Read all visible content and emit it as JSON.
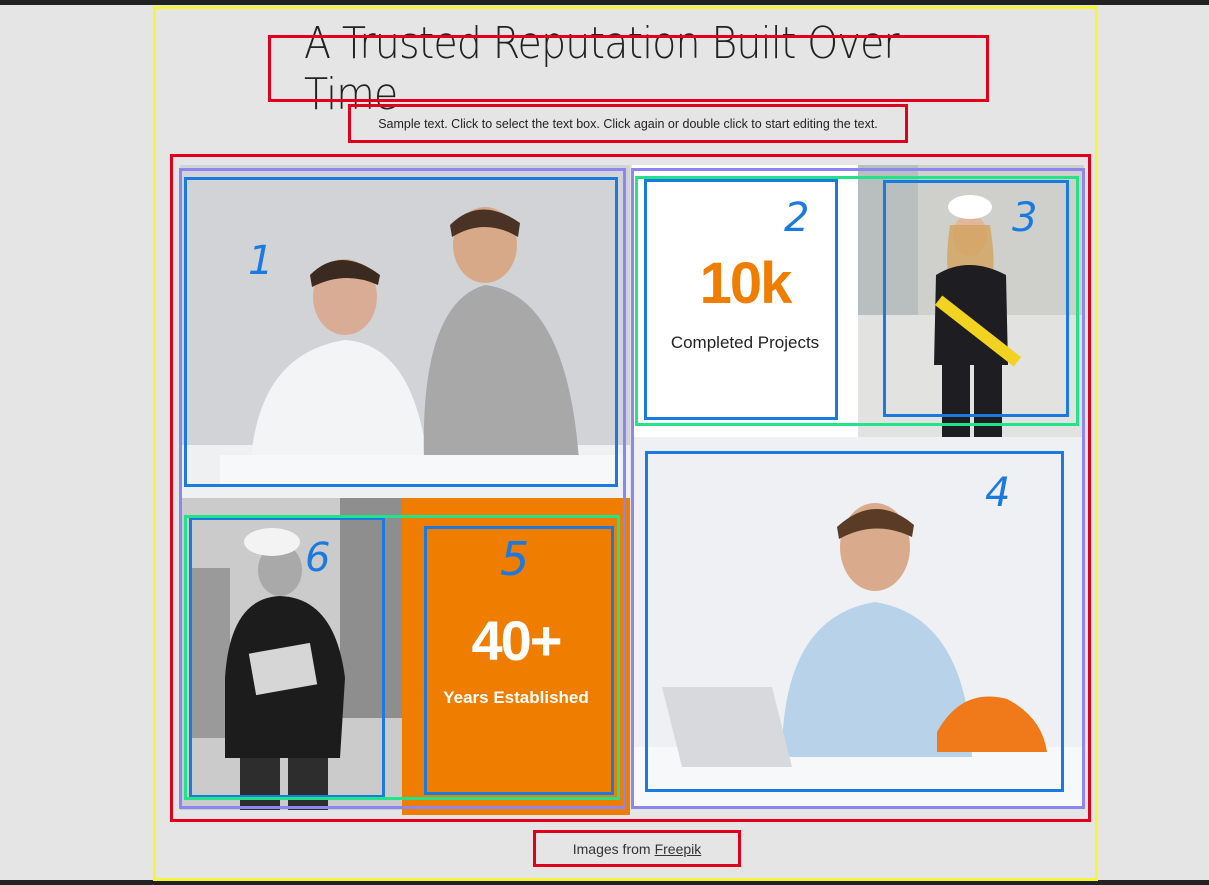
{
  "header": {
    "title": "A Trusted Reputation Built Over Time",
    "subtitle": "Sample text. Click to select the text box. Click again or double click to start editing the text."
  },
  "stats": [
    {
      "value": "10k",
      "label": "Completed Projects",
      "color": "#ef7d00"
    },
    {
      "value": "40+",
      "label": "Years Established",
      "color": "#ffffff"
    }
  ],
  "annotations": [
    "1",
    "2",
    "3",
    "4",
    "5",
    "6"
  ],
  "footer": {
    "prefix": "Images from",
    "link": "Freepik"
  },
  "colors": {
    "accent": "#ef7d00",
    "background": "#e5e5e5",
    "outline_red": "#e0001b",
    "outline_blue": "#1a7ae0",
    "outline_purple": "#8b86f0",
    "outline_green": "#22e28a",
    "outline_yellow": "#f5f53a"
  },
  "images": [
    {
      "icon": "two-men-reviewing-plans-image"
    },
    {
      "icon": "woman-engineer-with-level-image"
    },
    {
      "icon": "smiling-man-with-laptop-image"
    },
    {
      "icon": "construction-worker-with-clipboard-image"
    }
  ]
}
